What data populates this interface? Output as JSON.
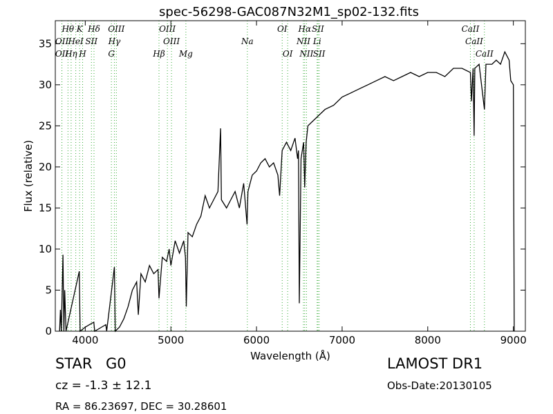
{
  "chart_data": {
    "type": "line",
    "title": "spec-56298-GAC087N32M1_sp02-132.fits",
    "x_label": "Wavelength (Å)",
    "y_label": "Flux (relative)",
    "xlim": [
      3650,
      9140
    ],
    "ylim": [
      0,
      37.8
    ],
    "xticks": [
      4000,
      5000,
      6000,
      7000,
      8000,
      9000
    ],
    "yticks": [
      0,
      5,
      10,
      15,
      20,
      25,
      30,
      35
    ],
    "color": "#000000",
    "line_color": "#33aa33",
    "x": [
      3700,
      3710,
      3720,
      3740,
      3750,
      3760,
      3775,
      3930,
      3940,
      4000,
      4100,
      4110,
      4240,
      4250,
      4340,
      4350,
      4400,
      4450,
      4500,
      4550,
      4600,
      4620,
      4650,
      4700,
      4750,
      4800,
      4850,
      4861,
      4900,
      4950,
      4980,
      5000,
      5050,
      5100,
      5150,
      5170,
      5180,
      5200,
      5250,
      5300,
      5350,
      5400,
      5450,
      5500,
      5550,
      5580,
      5590,
      5650,
      5700,
      5750,
      5800,
      5850,
      5890,
      5900,
      5950,
      6000,
      6050,
      6100,
      6150,
      6200,
      6250,
      6270,
      6300,
      6350,
      6400,
      6450,
      6480,
      6490,
      6500,
      6520,
      6550,
      6563,
      6580,
      6600,
      6650,
      6700,
      6750,
      6800,
      6900,
      7000,
      7100,
      7200,
      7300,
      7400,
      7500,
      7600,
      7700,
      7800,
      7900,
      8000,
      8100,
      8200,
      8300,
      8400,
      8498,
      8510,
      8530,
      8542,
      8550,
      8600,
      8662,
      8680,
      8750,
      8800,
      8850,
      8900,
      8950,
      8970,
      9000,
      9010
    ],
    "values": [
      0,
      2.6,
      0,
      9.3,
      0,
      5,
      0,
      7.3,
      0,
      0.5,
      1.1,
      0,
      0.8,
      0,
      7.8,
      0,
      0.5,
      1.5,
      3,
      5,
      6,
      2,
      7,
      6,
      8,
      7,
      7.5,
      4,
      9,
      8.5,
      10,
      8,
      11,
      9.5,
      11,
      9,
      3,
      12,
      11.5,
      13,
      14,
      16.5,
      15,
      16,
      17,
      24.7,
      16,
      15,
      16,
      17,
      15,
      18,
      13,
      17,
      19,
      19.5,
      20.5,
      21,
      20,
      20.5,
      19,
      16.5,
      22,
      23,
      22,
      23.5,
      21,
      22,
      3.4,
      21,
      23,
      17.5,
      23,
      25,
      25.5,
      26,
      26.5,
      27,
      27.5,
      28.5,
      29,
      29.5,
      30,
      30.5,
      31,
      30.5,
      31,
      31.5,
      31,
      31.5,
      31.5,
      31,
      32,
      32,
      31.5,
      28,
      32,
      23.8,
      32,
      32.5,
      27,
      32.5,
      32.5,
      33,
      32.5,
      34,
      33,
      30.5,
      30,
      0
    ],
    "lines": [
      {
        "label": "Hθ",
        "wavelength": 3798
      },
      {
        "label": "K",
        "wavelength": 3934
      },
      {
        "label": "Hδ",
        "wavelength": 4102
      },
      {
        "label": "OIII",
        "wavelength": 4363
      },
      {
        "label": "OIII",
        "wavelength": 4959
      },
      {
        "label": "OI",
        "wavelength": 6300
      },
      {
        "label": "Hα",
        "wavelength": 6563
      },
      {
        "label": "SII",
        "wavelength": 6717
      },
      {
        "label": "CaII",
        "wavelength": 8498
      },
      {
        "label": "OII",
        "wavelength": 3727
      },
      {
        "label": "HeI",
        "wavelength": 3889
      },
      {
        "label": "SII",
        "wavelength": 4072
      },
      {
        "label": "Hγ",
        "wavelength": 4340
      },
      {
        "label": "OIII",
        "wavelength": 5007
      },
      {
        "label": "Na",
        "wavelength": 5893
      },
      {
        "label": "NII",
        "wavelength": 6548
      },
      {
        "label": "Li",
        "wavelength": 6708
      },
      {
        "label": "CaII",
        "wavelength": 8542
      },
      {
        "label": "OII",
        "wavelength": 3727
      },
      {
        "label": "Hη",
        "wavelength": 3835
      },
      {
        "label": "H",
        "wavelength": 3969
      },
      {
        "label": "G",
        "wavelength": 4305
      },
      {
        "label": "Hβ",
        "wavelength": 4861
      },
      {
        "label": "Mg",
        "wavelength": 5175
      },
      {
        "label": "OI",
        "wavelength": 6364
      },
      {
        "label": "NII",
        "wavelength": 6584
      },
      {
        "label": "SII",
        "wavelength": 6731
      },
      {
        "label": "CaII",
        "wavelength": 8662
      }
    ],
    "footer": {
      "class": "STAR",
      "subclass": "G0",
      "cz": "cz = -1.3 ± 12.1",
      "coords": "RA = 86.23697, DEC = 30.28601",
      "survey": "LAMOST DR1",
      "date": "Obs-Date:20130105"
    }
  }
}
